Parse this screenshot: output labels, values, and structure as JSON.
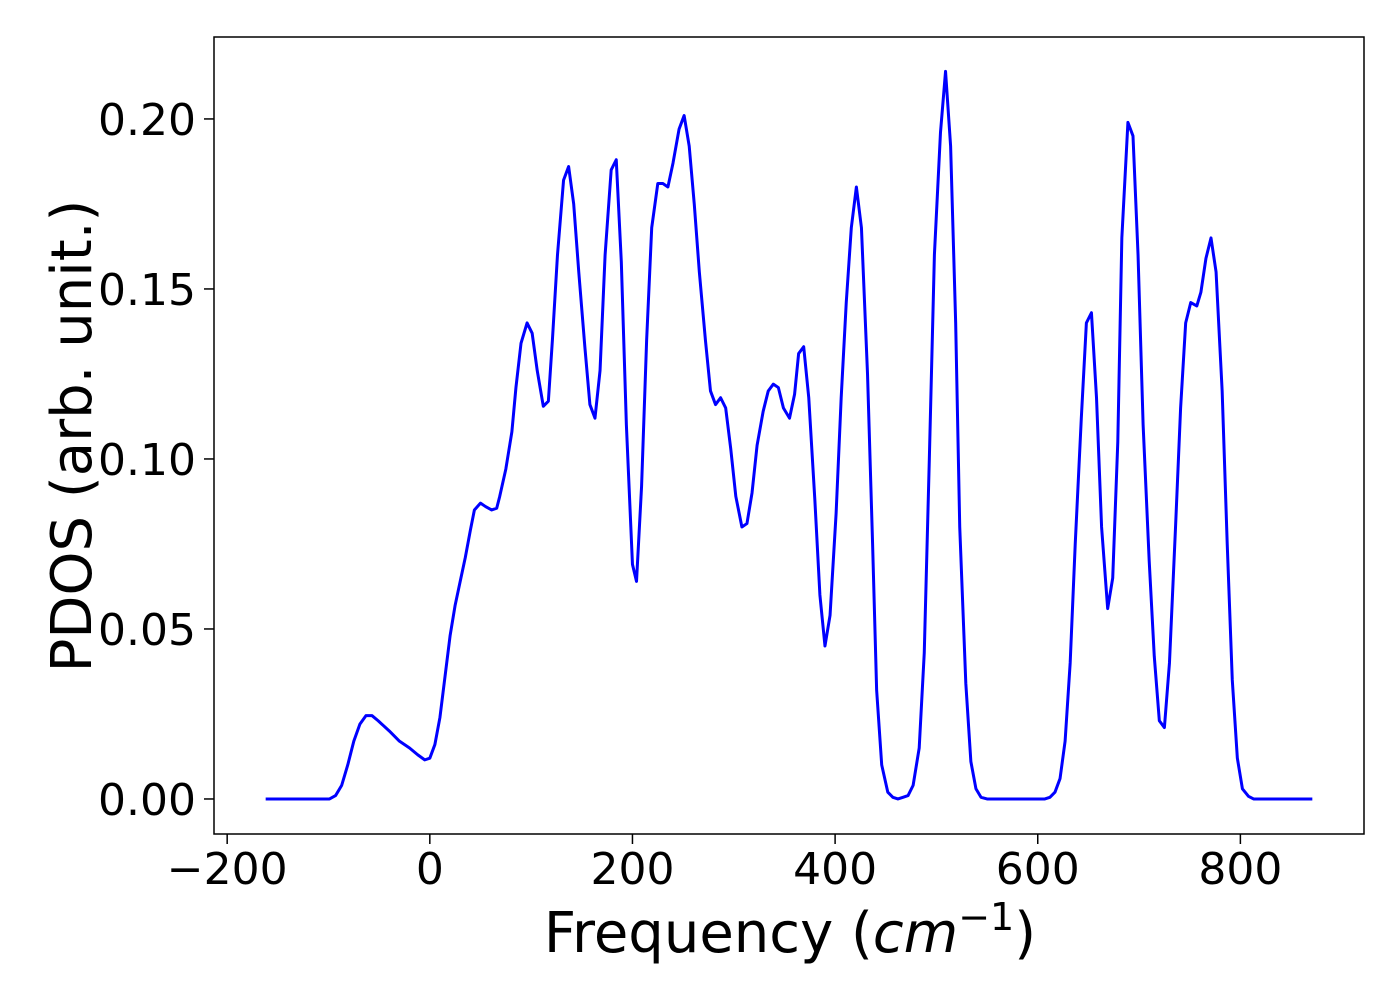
{
  "chart_data": {
    "type": "line",
    "x_label": [
      "Frequency (",
      "cm",
      "−1",
      ")"
    ],
    "y_label": "PDOS (arb. unit.)",
    "xlim": [
      -213,
      922
    ],
    "ylim": [
      -0.0103,
      0.2241
    ],
    "xticks": [
      {
        "value": -200,
        "label": "−200"
      },
      0,
      200,
      400,
      600,
      800
    ],
    "yticks": [
      {
        "value": 0,
        "label": "0.00"
      },
      {
        "value": 0.05,
        "label": "0.05"
      },
      {
        "value": 0.1,
        "label": "0.10"
      },
      {
        "value": 0.15,
        "label": "0.15"
      },
      {
        "value": 0.2,
        "label": "0.20"
      }
    ],
    "grid": false,
    "series": [
      {
        "color": "#0000ff",
        "x": [
          -162,
          -99,
          -93,
          -87,
          -81,
          -75,
          -69,
          -63,
          -57,
          -51,
          -40,
          -30,
          -20,
          -12,
          -5,
          0,
          5,
          10,
          15,
          20,
          25,
          30,
          35,
          40,
          44,
          50,
          55,
          61,
          66,
          69,
          75,
          81,
          85,
          90,
          96,
          101,
          106,
          112,
          117,
          121,
          126,
          132,
          137,
          142,
          147,
          153,
          158,
          163,
          168,
          173,
          179,
          184,
          189,
          194,
          200,
          204,
          209,
          214,
          219,
          225,
          230,
          235,
          240,
          246,
          251,
          256,
          261,
          266,
          272,
          277,
          282,
          287,
          292,
          297,
          302,
          308,
          313,
          318,
          323,
          329,
          334,
          339,
          344,
          349,
          355,
          360,
          364,
          369,
          374,
          380,
          385,
          390,
          395,
          401,
          406,
          411,
          416,
          421,
          426,
          432,
          437,
          441,
          446,
          452,
          457,
          462,
          467,
          472,
          477,
          483,
          488,
          493,
          498,
          504,
          509,
          514,
          519,
          523,
          529,
          534,
          539,
          544,
          550,
          607,
          612,
          617,
          622,
          627,
          632,
          637,
          643,
          648,
          653,
          658,
          663,
          669,
          674,
          679,
          683,
          689,
          694,
          699,
          704,
          710,
          715,
          720,
          725,
          730,
          736,
          741,
          746,
          751,
          757,
          761,
          766,
          771,
          776,
          782,
          787,
          792,
          797,
          802,
          808,
          813,
          871
        ],
        "values": [
          0,
          0,
          0.001,
          0.004,
          0.01,
          0.017,
          0.022,
          0.0245,
          0.0245,
          0.023,
          0.02,
          0.017,
          0.015,
          0.013,
          0.0115,
          0.012,
          0.016,
          0.024,
          0.036,
          0.048,
          0.057,
          0.064,
          0.071,
          0.079,
          0.085,
          0.087,
          0.086,
          0.085,
          0.0855,
          0.089,
          0.097,
          0.108,
          0.121,
          0.134,
          0.14,
          0.137,
          0.126,
          0.1155,
          0.117,
          0.135,
          0.16,
          0.182,
          0.186,
          0.175,
          0.155,
          0.133,
          0.116,
          0.112,
          0.126,
          0.16,
          0.185,
          0.188,
          0.158,
          0.11,
          0.069,
          0.064,
          0.092,
          0.135,
          0.168,
          0.181,
          0.181,
          0.18,
          0.187,
          0.197,
          0.201,
          0.192,
          0.175,
          0.155,
          0.135,
          0.12,
          0.116,
          0.118,
          0.115,
          0.103,
          0.089,
          0.08,
          0.081,
          0.09,
          0.104,
          0.114,
          0.12,
          0.122,
          0.121,
          0.115,
          0.112,
          0.119,
          0.131,
          0.133,
          0.118,
          0.088,
          0.06,
          0.045,
          0.054,
          0.084,
          0.118,
          0.146,
          0.168,
          0.18,
          0.168,
          0.125,
          0.075,
          0.032,
          0.01,
          0.002,
          0.0005,
          0,
          0.0005,
          0.001,
          0.004,
          0.015,
          0.043,
          0.1,
          0.16,
          0.196,
          0.214,
          0.192,
          0.14,
          0.08,
          0.034,
          0.011,
          0.003,
          0.0005,
          0,
          0,
          0.0005,
          0.002,
          0.006,
          0.017,
          0.04,
          0.075,
          0.112,
          0.14,
          0.143,
          0.118,
          0.08,
          0.056,
          0.065,
          0.105,
          0.165,
          0.199,
          0.195,
          0.16,
          0.11,
          0.07,
          0.042,
          0.023,
          0.021,
          0.04,
          0.08,
          0.115,
          0.14,
          0.146,
          0.145,
          0.149,
          0.159,
          0.165,
          0.155,
          0.12,
          0.075,
          0.035,
          0.012,
          0.003,
          0.0008,
          0,
          0
        ]
      }
    ]
  }
}
